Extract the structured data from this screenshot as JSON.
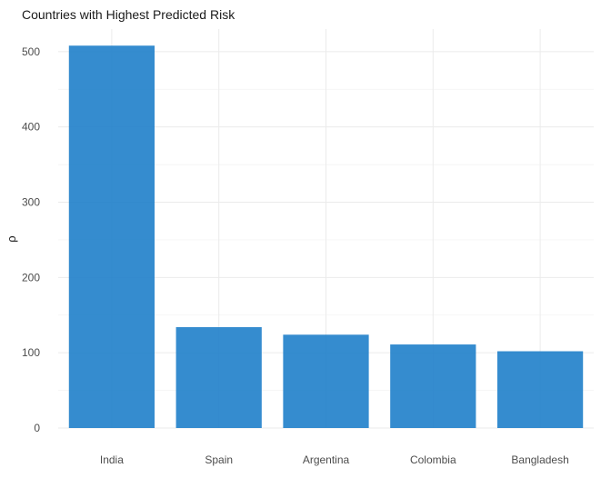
{
  "chart_data": {
    "type": "bar",
    "title": "Countries with Highest Predicted Risk",
    "xlabel": "",
    "ylabel": "ρ",
    "categories": [
      "India",
      "Spain",
      "Argentina",
      "Colombia",
      "Bangladesh"
    ],
    "values": [
      508,
      134,
      124,
      111,
      102
    ],
    "ylim": [
      0,
      530
    ],
    "yticks": [
      0,
      100,
      200,
      300,
      400,
      500
    ],
    "grid": true,
    "legend": "none",
    "bar_color": "#1f7fca"
  }
}
